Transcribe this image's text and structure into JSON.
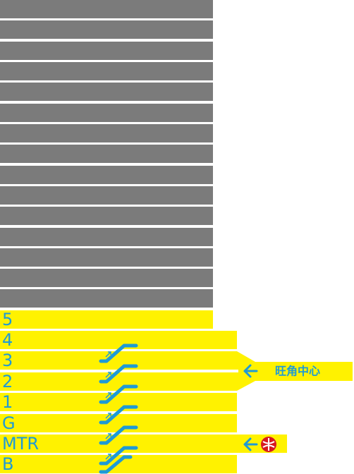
{
  "floors": [
    "5",
    "4",
    "3",
    "2",
    "1",
    "G",
    "MTR",
    "B"
  ],
  "link_label": "旺角中心"
}
